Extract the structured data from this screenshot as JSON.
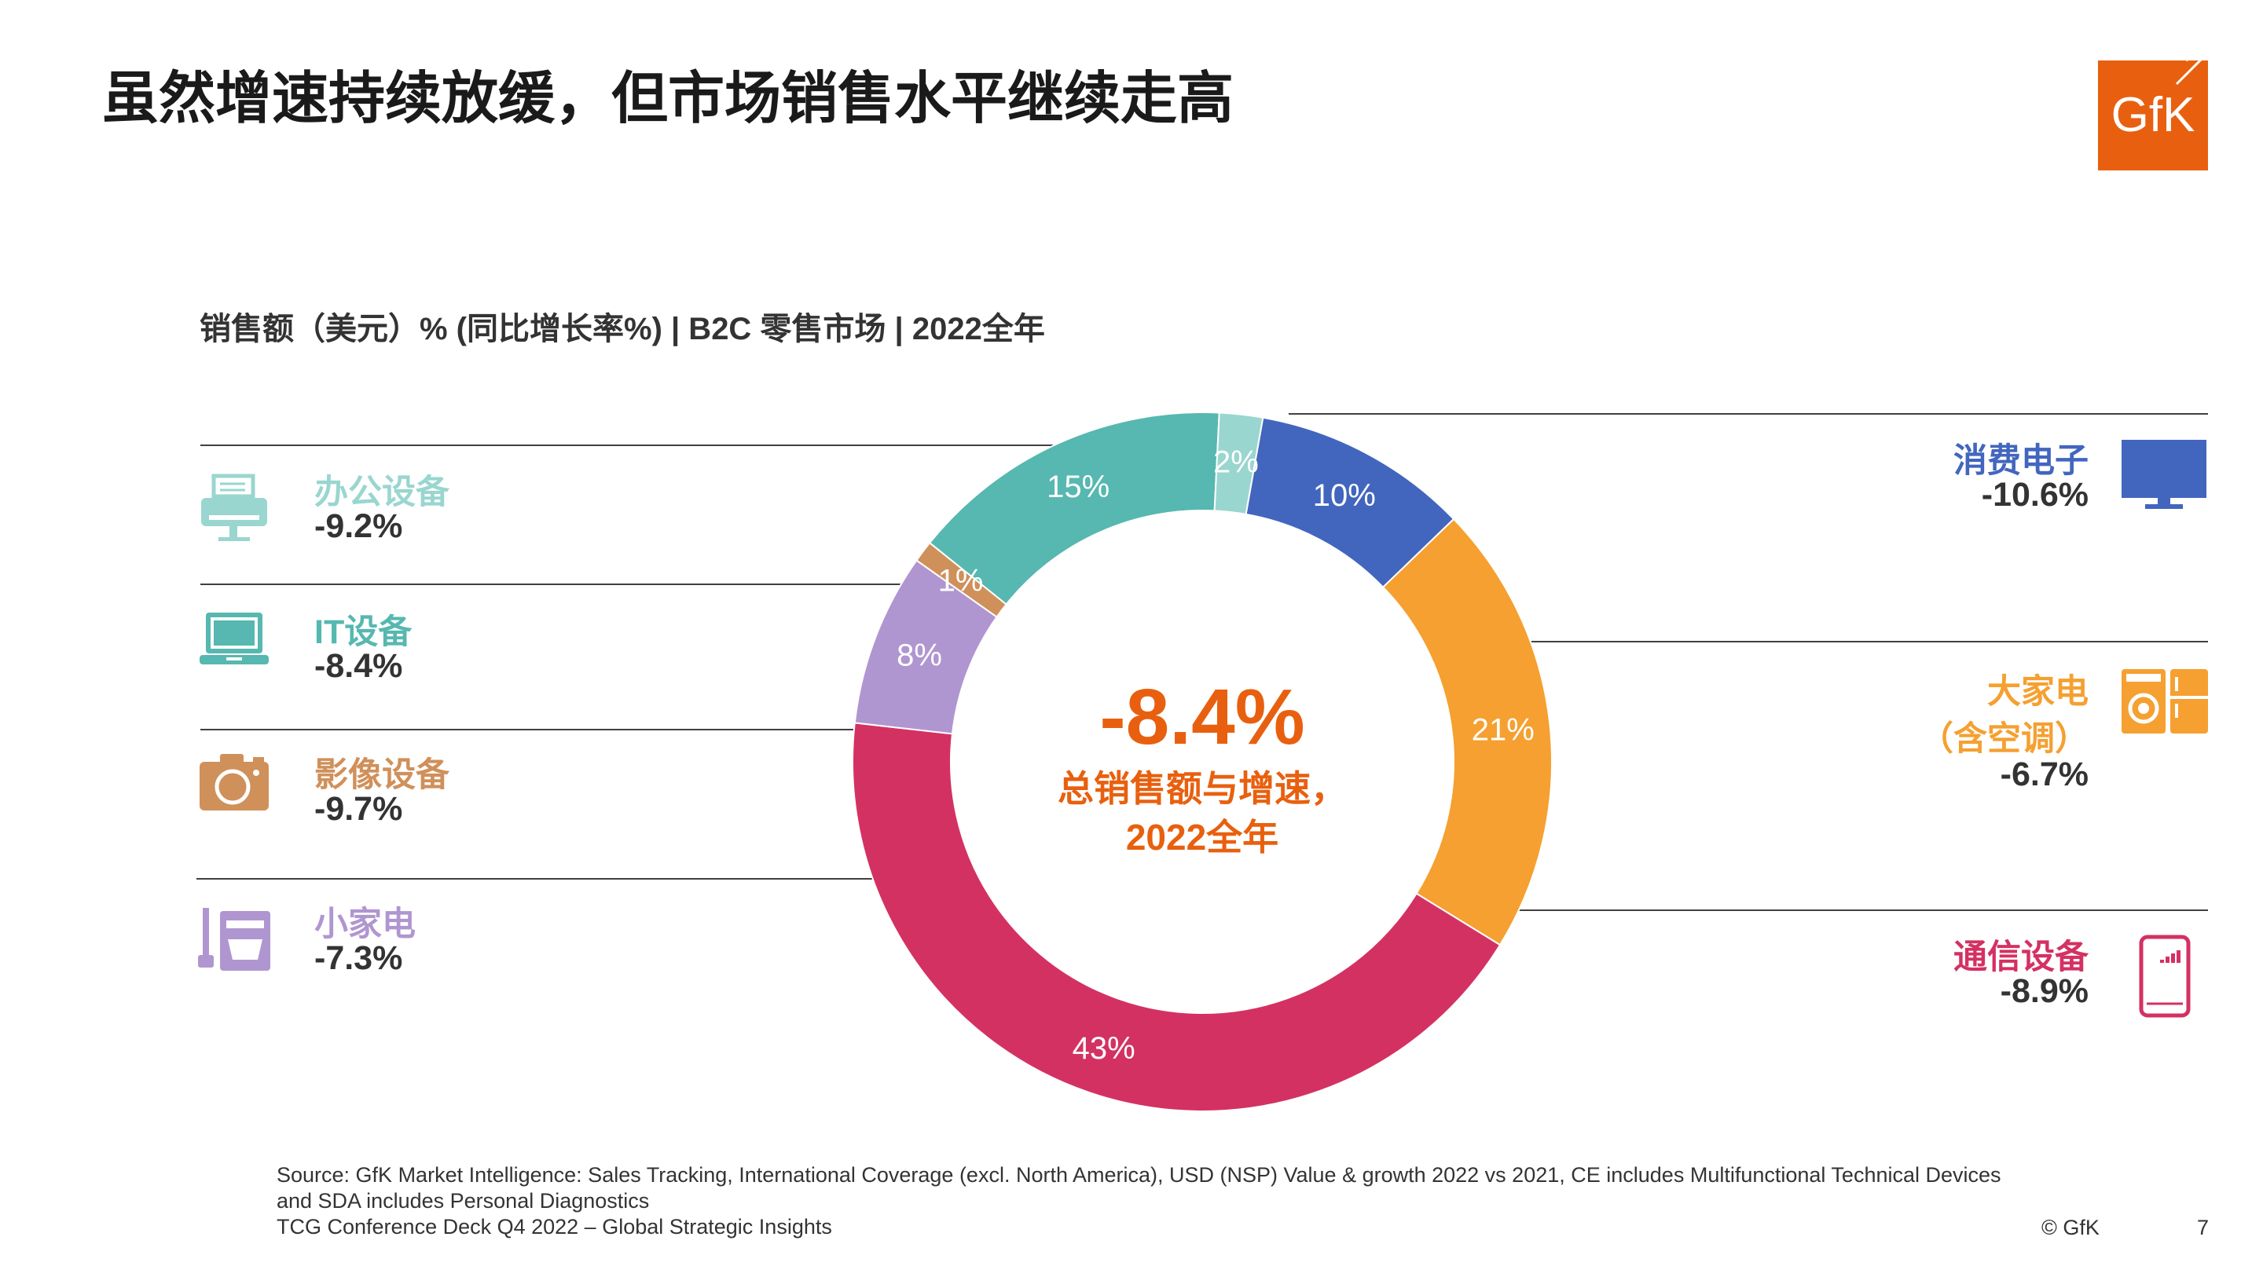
{
  "title": "虽然增速持续放缓，但市场销售水平继续走高",
  "logo_text": "GfK",
  "subtitle": "销售额（美元）% (同比增长率%) | B2C 零售市场 |  2022全年",
  "center": {
    "value": "-8.4%",
    "label_line1": "总销售额与增速，",
    "label_line2": "2022全年"
  },
  "categories": {
    "office": {
      "name": "办公设备",
      "growth": "-9.2%",
      "color": "#99d6cf",
      "icon": "printer-icon"
    },
    "it": {
      "name": "IT设备",
      "growth": "-8.4%",
      "color": "#56b8b0",
      "icon": "laptop-icon"
    },
    "imaging": {
      "name": "影像设备",
      "growth": "-9.7%",
      "color": "#d0905a",
      "icon": "camera-icon"
    },
    "sda": {
      "name": "小家电",
      "growth": "-7.3%",
      "color": "#b096d0",
      "icon": "mixer-icon"
    },
    "ce": {
      "name": "消费电子",
      "growth": "-10.6%",
      "color": "#4266be",
      "icon": "tv-icon"
    },
    "mda": {
      "name": "大家电",
      "name2": "（含空调）",
      "growth": "-6.7%",
      "color": "#f5a030",
      "icon": "washer-fridge-icon"
    },
    "telecom": {
      "name": "通信设备",
      "growth": "-8.9%",
      "color": "#d43163",
      "icon": "smartphone-icon"
    }
  },
  "chart_data": {
    "type": "pie",
    "donut": true,
    "title": "销售额（美元）% (同比增长率%) | B2C 零售市场 |  2022全年",
    "start_angle_deg": 10,
    "direction": "clockwise",
    "slices": [
      {
        "label": "10%",
        "value": 10,
        "color": "#4266be"
      },
      {
        "label": "21%",
        "value": 21,
        "color": "#f5a030"
      },
      {
        "label": "43%",
        "value": 43,
        "color": "#d43163"
      },
      {
        "label": "8%",
        "value": 8,
        "color": "#b096d0"
      },
      {
        "label": "1%",
        "value": 1,
        "color": "#d0905a"
      },
      {
        "label": "15%",
        "value": 15,
        "color": "#56b8b0"
      },
      {
        "label": "2%",
        "value": 2,
        "color": "#99d6cf"
      }
    ]
  },
  "footer": {
    "source_line1": "Source: GfK Market Intelligence: Sales Tracking, International Coverage (excl. North America), USD (NSP) Value & growth 2022 vs 2021, CE includes Multifunctional Technical Devices",
    "source_line2": "and SDA includes Personal Diagnostics",
    "source_line3": "TCG Conference Deck Q4 2022 – Global Strategic Insights",
    "copyright": "© GfK",
    "page_number": "7"
  }
}
